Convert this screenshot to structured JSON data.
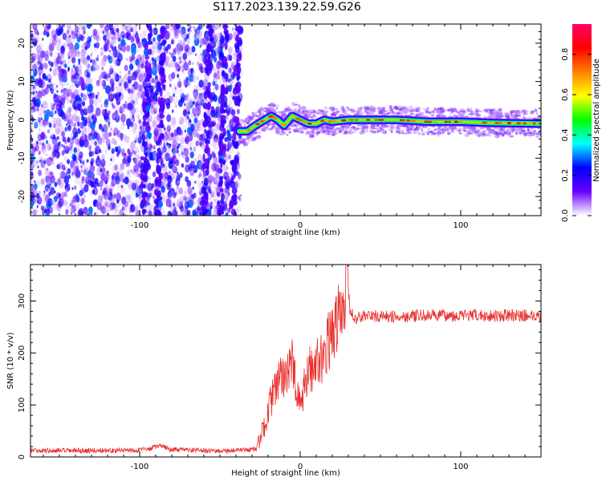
{
  "figure": {
    "title": "S117.2023.139.22.59.G26"
  },
  "chart_data": [
    {
      "type": "heatmap",
      "xlabel": "Height of straight line (km)",
      "ylabel": "Frequency (Hz)",
      "xlim": [
        -168,
        150
      ],
      "ylim": [
        -25,
        25
      ],
      "xticks": [
        -100,
        0,
        100
      ],
      "yticks": [
        -20,
        -10,
        0,
        10,
        20
      ],
      "grid": false,
      "colorbar": {
        "label": "Normalized spectral amplitude",
        "range": [
          0,
          0.95
        ],
        "ticks": [
          0.0,
          0.2,
          0.4,
          0.6,
          0.8
        ],
        "tick_labels": [
          "0.0",
          "0.2",
          "0.4",
          "0.6",
          "0.8"
        ],
        "colors": [
          "#ffffff",
          "#6a00ff",
          "#0000ff",
          "#00ffff",
          "#00ff00",
          "#ffff00",
          "#ff8000",
          "#ff0000",
          "#ff0066"
        ]
      },
      "noise_region_x": [
        -168,
        -40
      ],
      "vertical_streaks_x": [
        -96,
        -87,
        -58,
        -48,
        -40
      ],
      "ridge": {
        "x": [
          -38,
          -33,
          -28,
          -24,
          -18,
          -14,
          -10,
          -5,
          0,
          5,
          10,
          15,
          20,
          30,
          40,
          60,
          80,
          100,
          120,
          150
        ],
        "y": [
          -3,
          -3,
          -1.5,
          -0.5,
          1,
          0,
          -1.5,
          1,
          0,
          -1,
          -1,
          0,
          -0.5,
          0,
          0,
          0,
          -0.5,
          -0.5,
          -0.8,
          -1
        ],
        "peak_amplitude": 0.9
      }
    },
    {
      "type": "line",
      "xlabel": "Height of straight line (km)",
      "ylabel": "SNR (10 * v/v)",
      "xlim": [
        -168,
        150
      ],
      "ylim": [
        0,
        370
      ],
      "xticks": [
        -100,
        0,
        100
      ],
      "yticks": [
        0,
        100,
        200,
        300
      ],
      "grid": false,
      "series": [
        {
          "color": "#e8302e",
          "x": [
            -168,
            -140,
            -110,
            -95,
            -88,
            -80,
            -60,
            -40,
            -27,
            -22,
            -18,
            -15,
            -10,
            -5,
            -2,
            0,
            3,
            6,
            10,
            15,
            20,
            24,
            27,
            29,
            31,
            35,
            40,
            50,
            60,
            80,
            100,
            120,
            140,
            150
          ],
          "y": [
            12,
            12,
            13,
            14,
            22,
            14,
            12,
            12,
            15,
            65,
            110,
            135,
            160,
            180,
            120,
            95,
            140,
            170,
            180,
            200,
            240,
            270,
            300,
            360,
            280,
            265,
            272,
            270,
            270,
            272,
            272,
            272,
            272,
            272
          ]
        }
      ]
    }
  ]
}
